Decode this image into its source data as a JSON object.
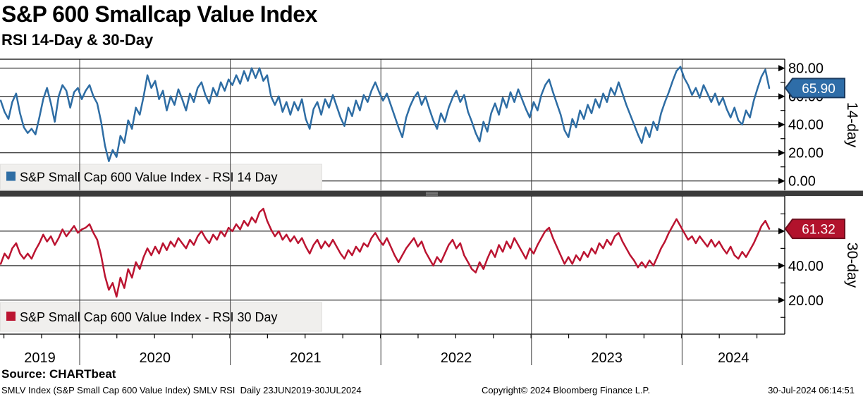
{
  "header": {
    "title": "S&P 600 Smallcap Value Index",
    "subtitle": "RSI 14-Day & 30-Day"
  },
  "footer": {
    "source": "Source: CHARTbeat",
    "description": "SMLV Index (S&P Small Cap 600 Value Index) SMLV RSI  Daily 23JUN2019-30JUL2024",
    "copyright": "Copyright© 2024 Bloomberg Finance L.P.",
    "timestamp": "30-Jul-2024 06:14:51"
  },
  "colors": {
    "grid": "#000000",
    "year_line": "#3a3a3a",
    "legend_bg": "#f0efed",
    "legend_border": "#e2e1df",
    "divider": "#3b3b3b",
    "divider_grip": "#9a9a9a"
  },
  "chart_data": {
    "type": "line",
    "x_range": {
      "start": "23JUN2019",
      "end": "30JUL2024"
    },
    "x_ticks_years": [
      "2019",
      "2020",
      "2021",
      "2022",
      "2023",
      "2024"
    ],
    "grid": true,
    "legend_position": "bottom-left-inside",
    "panels": [
      {
        "id": "rsi14",
        "axis_label": "14-day",
        "legend": "S&P Small Cap 600 Value Index - RSI 14 Day",
        "last_value": 65.9,
        "last_value_label": "65.90",
        "color": "#2e6da4",
        "badge_color": "#2e6da8",
        "badge_border": "#1a3a5f",
        "ylim": [
          -6.6,
          86.3
        ],
        "yticks_major": [
          {
            "v": 80,
            "label": "80.00"
          },
          {
            "v": 60,
            "label": "60.00"
          },
          {
            "v": 40,
            "label": "40.00"
          },
          {
            "v": 20,
            "label": "20.00"
          },
          {
            "v": 0,
            "label": "0.00"
          }
        ],
        "yticks_minor": [
          70,
          50,
          30,
          10
        ],
        "values": [
          57,
          49,
          44,
          56,
          62,
          48,
          38,
          34,
          37,
          33,
          45,
          58,
          66,
          55,
          42,
          60,
          68,
          64,
          52,
          63,
          66,
          58,
          64,
          68,
          60,
          55,
          42,
          25,
          14,
          22,
          17,
          32,
          27,
          43,
          37,
          52,
          47,
          60,
          75,
          66,
          71,
          58,
          64,
          50,
          60,
          54,
          65,
          58,
          50,
          62,
          56,
          66,
          70,
          61,
          55,
          66,
          60,
          70,
          64,
          72,
          68,
          75,
          69,
          78,
          71,
          80,
          73,
          80,
          71,
          75,
          60,
          54,
          60,
          49,
          56,
          47,
          56,
          50,
          58,
          44,
          37,
          51,
          56,
          47,
          58,
          52,
          61,
          53,
          45,
          39,
          52,
          46,
          57,
          50,
          61,
          56,
          64,
          70,
          63,
          57,
          62,
          54,
          46,
          38,
          31,
          45,
          53,
          59,
          63,
          54,
          60,
          51,
          43,
          37,
          48,
          42,
          52,
          59,
          64,
          56,
          61,
          49,
          42,
          34,
          28,
          42,
          35,
          48,
          55,
          47,
          59,
          52,
          63,
          56,
          65,
          58,
          51,
          45,
          56,
          50,
          61,
          68,
          72,
          63,
          55,
          47,
          36,
          31,
          44,
          38,
          50,
          44,
          54,
          48,
          58,
          52,
          62,
          56,
          66,
          61,
          70,
          62,
          54,
          47,
          40,
          33,
          27,
          38,
          31,
          42,
          36,
          48,
          56,
          63,
          71,
          78,
          81,
          73,
          68,
          61,
          66,
          59,
          68,
          62,
          56,
          62,
          54,
          59,
          51,
          45,
          52,
          43,
          40,
          50,
          45,
          57,
          66,
          74,
          79,
          65.9
        ]
      },
      {
        "id": "rsi30",
        "axis_label": "30-day",
        "legend": "S&P Small Cap 600 Value Index - RSI 30 Day",
        "last_value": 61.32,
        "last_value_label": "61.32",
        "color": "#bb1431",
        "badge_color": "#b2122c",
        "badge_border": "#6e0d1d",
        "ylim": [
          0,
          80.4
        ],
        "yticks_major": [
          {
            "v": 60,
            "label": "60.00"
          },
          {
            "v": 40,
            "label": "40.00"
          },
          {
            "v": 20,
            "label": "20.00"
          }
        ],
        "yticks_minor": [
          70,
          50,
          30,
          10
        ],
        "values": [
          41,
          47,
          44,
          50,
          53,
          47,
          44,
          47,
          44,
          49,
          53,
          58,
          54,
          57,
          52,
          56,
          61,
          57,
          60,
          63,
          59,
          61,
          62,
          64,
          59,
          55,
          46,
          34,
          26,
          30,
          22,
          33,
          27,
          38,
          33,
          42,
          38,
          45,
          50,
          46,
          51,
          47,
          53,
          49,
          54,
          51,
          56,
          53,
          50,
          55,
          52,
          57,
          60,
          56,
          53,
          58,
          55,
          60,
          57,
          62,
          60,
          64,
          61,
          66,
          63,
          68,
          65,
          71,
          73,
          66,
          61,
          57,
          60,
          55,
          58,
          54,
          57,
          53,
          56,
          51,
          47,
          52,
          55,
          50,
          54,
          51,
          55,
          51,
          47,
          44,
          49,
          46,
          51,
          48,
          53,
          51,
          56,
          59,
          55,
          52,
          56,
          51,
          46,
          42,
          46,
          50,
          53,
          56,
          51,
          54,
          48,
          44,
          40,
          45,
          42,
          47,
          52,
          55,
          50,
          53,
          46,
          42,
          38,
          36,
          42,
          38,
          44,
          49,
          45,
          52,
          48,
          54,
          50,
          56,
          52,
          48,
          44,
          50,
          47,
          52,
          56,
          60,
          62,
          56,
          51,
          46,
          41,
          45,
          41,
          46,
          43,
          48,
          45,
          50,
          47,
          53,
          50,
          55,
          52,
          57,
          59,
          54,
          50,
          46,
          43,
          39,
          42,
          39,
          43,
          40,
          45,
          50,
          54,
          59,
          63,
          67,
          63,
          59,
          55,
          57,
          53,
          57,
          54,
          51,
          55,
          51,
          54,
          50,
          47,
          51,
          46,
          44,
          48,
          45,
          49,
          53,
          58,
          63,
          66,
          61.32
        ]
      }
    ]
  }
}
